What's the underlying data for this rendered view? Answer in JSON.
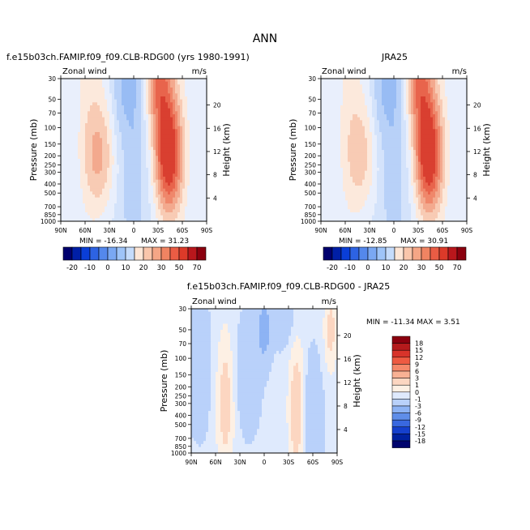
{
  "figure": {
    "title": "ANN"
  },
  "chart_data": [
    {
      "type": "heatmap",
      "title": "f.e15b03ch.FAMIP.f09_f09.CLB-RDG00 (yrs 1980-1991)",
      "left_label": "Zonal wind",
      "right_label": "m/s",
      "ylabel": "Pressure (mb)",
      "y2label": "Height (km)",
      "x_ticks": [
        "90N",
        "60N",
        "30N",
        "0",
        "30S",
        "60S",
        "90S"
      ],
      "p_ticks": [
        30,
        50,
        70,
        100,
        150,
        200,
        250,
        300,
        400,
        500,
        700,
        850,
        1000
      ],
      "h_ticks": [
        4,
        8,
        12,
        16,
        20
      ],
      "min_text": "MIN = -16.34",
      "max_text": "MAX =  31.23",
      "stats": {
        "min": -16.34,
        "max": 31.23
      },
      "levels": [
        -20,
        -15,
        -10,
        -5,
        0,
        5,
        10,
        15,
        20,
        25,
        30,
        40,
        50,
        60,
        70
      ],
      "labelbar_ticks": [
        "-20",
        "-10",
        "0",
        "10",
        "20",
        "30",
        "50",
        "70"
      ],
      "jets": {
        "north_max": 15,
        "south_max": 31,
        "north_lat": 42,
        "south_lat": -42
      }
    },
    {
      "type": "heatmap",
      "title": "JRA25",
      "left_label": "Zonal wind",
      "right_label": "m/s",
      "ylabel": "Pressure (mb)",
      "y2label": "Height (km)",
      "x_ticks": [
        "90N",
        "60N",
        "30N",
        "0",
        "30S",
        "60S",
        "90S"
      ],
      "p_ticks": [
        30,
        50,
        70,
        100,
        150,
        200,
        250,
        300,
        400,
        500,
        700,
        850,
        1000
      ],
      "h_ticks": [
        4,
        8,
        12,
        16,
        20
      ],
      "min_text": "MIN = -12.85",
      "max_text": "MAX =  30.91",
      "stats": {
        "min": -12.85,
        "max": 30.91
      },
      "levels": [
        -20,
        -15,
        -10,
        -5,
        0,
        5,
        10,
        15,
        20,
        25,
        30,
        40,
        50,
        60,
        70
      ],
      "labelbar_ticks": [
        "-20",
        "-10",
        "0",
        "10",
        "20",
        "30",
        "50",
        "70"
      ],
      "jets": {
        "north_max": 12,
        "south_max": 31,
        "north_lat": 40,
        "south_lat": -42
      }
    },
    {
      "type": "heatmap",
      "title": "f.e15b03ch.FAMIP.f09_f09.CLB-RDG00 - JRA25",
      "left_label": "Zonal wind",
      "right_label": "m/s",
      "ylabel": "Pressure (mb)",
      "y2label": "Height (km)",
      "x_ticks": [
        "90N",
        "60N",
        "30N",
        "0",
        "30S",
        "60S",
        "90S"
      ],
      "p_ticks": [
        30,
        50,
        70,
        100,
        150,
        200,
        250,
        300,
        400,
        500,
        700,
        850,
        1000
      ],
      "h_ticks": [
        4,
        8,
        12,
        16,
        20
      ],
      "minmax_text": "MIN = -11.34   MAX =    3.51",
      "stats": {
        "min": -11.34,
        "max": 3.51
      },
      "levels": [
        -18,
        -15,
        -12,
        -9,
        -6,
        -3,
        -1,
        0,
        1,
        3,
        6,
        9,
        12,
        15,
        18
      ],
      "labelbar_ticks": [
        "18",
        "15",
        "12",
        "9",
        "6",
        "3",
        "1",
        "0",
        "-1",
        "-3",
        "-6",
        "-9",
        "-12",
        "-15",
        "-18"
      ]
    }
  ],
  "colors": {
    "pos": [
      "#fce9dc",
      "#f8cbb4",
      "#f3a98e",
      "#ef876b",
      "#e8644c",
      "#d93f30",
      "#bb1e1e",
      "#900012"
    ],
    "neg": [
      "#d4e3fb",
      "#b8d1f8",
      "#98bcf4",
      "#78a5ef",
      "#5585e8",
      "#2f62de",
      "#0e3cc9",
      "#002494",
      "#000a6e"
    ],
    "bar_pos": [
      "#fde6d6",
      "#f9c6ab",
      "#f5a686",
      "#f08462",
      "#ea5c44",
      "#dc3a29",
      "#b9171c",
      "#8b000e"
    ],
    "bar_neg": [
      "#00006e",
      "#001fa6",
      "#0a3ed7",
      "#2d63e3",
      "#5488ec",
      "#7aa8f3",
      "#9ec4f8",
      "#c5dcfb"
    ],
    "diff_bar": [
      "#8b000e",
      "#b51a1c",
      "#d8332a",
      "#ee5a42",
      "#f5886a",
      "#f8b194",
      "#fcd6c1",
      "#fdf0e4",
      "#dfeafd",
      "#b9d1fa",
      "#8db3f4",
      "#5f8ee9",
      "#3968df",
      "#1540cd",
      "#0021a0",
      "#00046e"
    ]
  }
}
